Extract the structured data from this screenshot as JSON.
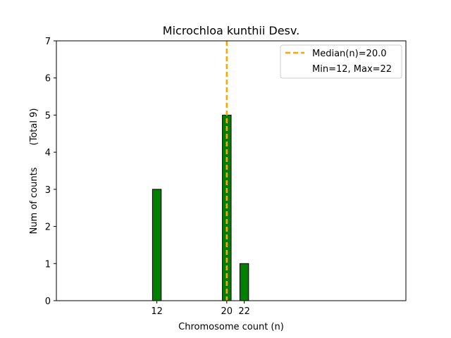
{
  "chart_data": {
    "type": "bar",
    "title": "Microchloa kunthii Desv.",
    "xlabel": "Chromosome count (n)",
    "ylabel": "Num of counts",
    "ylabel_total": "(Total 9)",
    "x": [
      12,
      20,
      22
    ],
    "values": [
      3,
      5,
      1
    ],
    "bar_width": 1,
    "xlim": [
      0.5,
      40.5
    ],
    "ylim": [
      0,
      7
    ],
    "xticks": [
      12,
      20,
      22
    ],
    "yticks": [
      0,
      1,
      2,
      3,
      4,
      5,
      6,
      7
    ],
    "bar_color": "#008000",
    "bar_edge_color": "#000000",
    "median": 20.0,
    "median_color": "#FFA500",
    "legend_position": "top-right",
    "legend": {
      "median_label": "Median(n)=20.0",
      "range_label": "Min=12, Max=22"
    },
    "grid": false
  }
}
